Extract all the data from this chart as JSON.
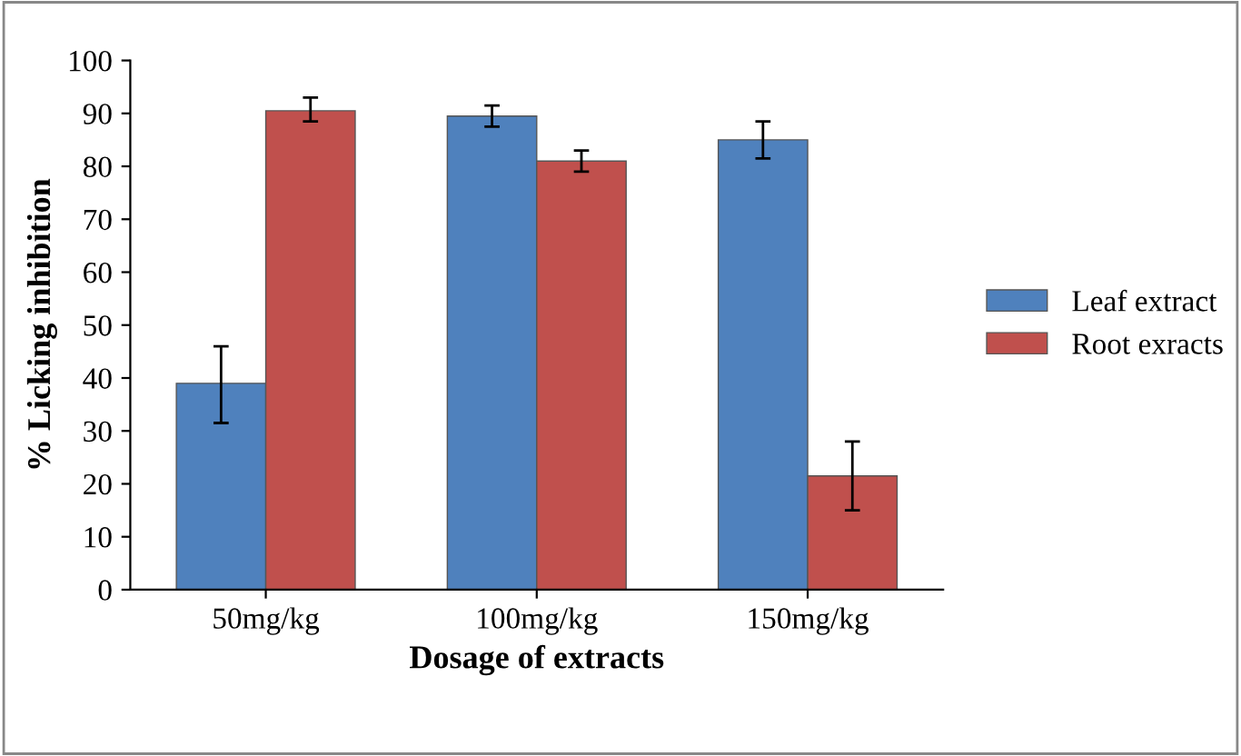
{
  "chart_data": {
    "type": "bar",
    "xlabel": "Dosage of extracts",
    "ylabel": "% Licking inhibition",
    "categories": [
      "50mg/kg",
      "100mg/kg",
      "150mg/kg"
    ],
    "series": [
      {
        "name": "Leaf extract",
        "color": "#4f81bd",
        "values": [
          39,
          89.5,
          85
        ],
        "errors": [
          [
            31.5,
            46
          ],
          [
            87.5,
            91.5
          ],
          [
            81.5,
            88.5
          ]
        ]
      },
      {
        "name": "Root exracts",
        "color": "#c0504d",
        "values": [
          90.5,
          81,
          21.5
        ],
        "errors": [
          [
            88.5,
            93
          ],
          [
            79,
            83
          ],
          [
            15,
            28
          ]
        ]
      }
    ],
    "ylim": [
      0,
      100
    ],
    "yticks": [
      0,
      10,
      20,
      30,
      40,
      50,
      60,
      70,
      80,
      90,
      100
    ],
    "grid": false,
    "legend": "right"
  }
}
